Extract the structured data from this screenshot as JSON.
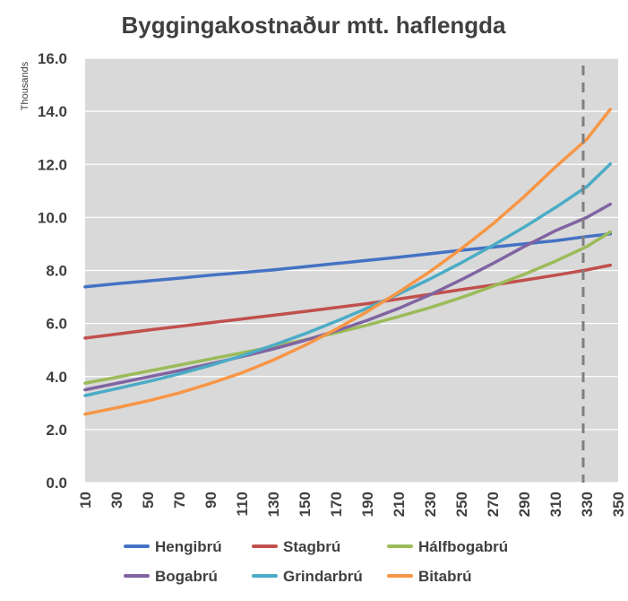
{
  "chart_data": {
    "type": "line",
    "title": "Byggingakostnaður mtt. haflengda",
    "unit_label": "Thousands",
    "xlabel": "",
    "ylabel": "",
    "ylim": [
      0,
      16
    ],
    "y_ticks": [
      "0.0",
      "2.0",
      "4.0",
      "6.0",
      "8.0",
      "10.0",
      "12.0",
      "14.0",
      "16.0"
    ],
    "x_tick_labels": [
      "10",
      "30",
      "50",
      "70",
      "90",
      "110",
      "130",
      "150",
      "170",
      "190",
      "210",
      "230",
      "250",
      "270",
      "290",
      "310",
      "330",
      "350"
    ],
    "x": [
      10,
      30,
      50,
      70,
      90,
      110,
      130,
      150,
      170,
      190,
      210,
      230,
      250,
      270,
      290,
      310,
      330,
      345
    ],
    "series": [
      {
        "name": "Hengibrú",
        "color": "#4472C4",
        "values": [
          7.38,
          7.5,
          7.6,
          7.71,
          7.82,
          7.92,
          8.02,
          8.14,
          8.26,
          8.38,
          8.5,
          8.63,
          8.76,
          8.88,
          9.0,
          9.12,
          9.28,
          9.38
        ]
      },
      {
        "name": "Stagbrú",
        "color": "#C0504D",
        "values": [
          5.45,
          5.6,
          5.75,
          5.89,
          6.03,
          6.17,
          6.31,
          6.45,
          6.6,
          6.75,
          6.92,
          7.1,
          7.28,
          7.45,
          7.63,
          7.82,
          8.02,
          8.2
        ]
      },
      {
        "name": "Hálfbogabrú",
        "color": "#9BBB59",
        "values": [
          3.75,
          3.97,
          4.2,
          4.43,
          4.66,
          4.89,
          5.13,
          5.38,
          5.65,
          5.94,
          6.26,
          6.6,
          6.98,
          7.4,
          7.85,
          8.35,
          8.9,
          9.45
        ]
      },
      {
        "name": "Bogabrú",
        "color": "#8064A2",
        "values": [
          3.5,
          3.74,
          3.98,
          4.22,
          4.48,
          4.75,
          5.04,
          5.36,
          5.72,
          6.12,
          6.57,
          7.08,
          7.65,
          8.26,
          8.9,
          9.5,
          10.0,
          10.5
        ]
      },
      {
        "name": "Grindarbrú",
        "color": "#4BACC6",
        "values": [
          3.28,
          3.54,
          3.81,
          4.1,
          4.42,
          4.78,
          5.18,
          5.61,
          6.08,
          6.58,
          7.11,
          7.68,
          8.29,
          8.94,
          9.63,
          10.37,
          11.16,
          12.02
        ]
      },
      {
        "name": "Bitabrú",
        "color": "#F79646",
        "values": [
          2.58,
          2.82,
          3.08,
          3.38,
          3.74,
          4.14,
          4.62,
          5.17,
          5.78,
          6.45,
          7.18,
          7.96,
          8.82,
          9.75,
          10.78,
          11.9,
          12.95,
          14.08
        ]
      }
    ],
    "reference_line": {
      "x": 330,
      "style": "dashed",
      "color": "#7F7F7F"
    },
    "legend_position": "bottom",
    "grid": true,
    "plot_background": "#D9D9D9"
  }
}
